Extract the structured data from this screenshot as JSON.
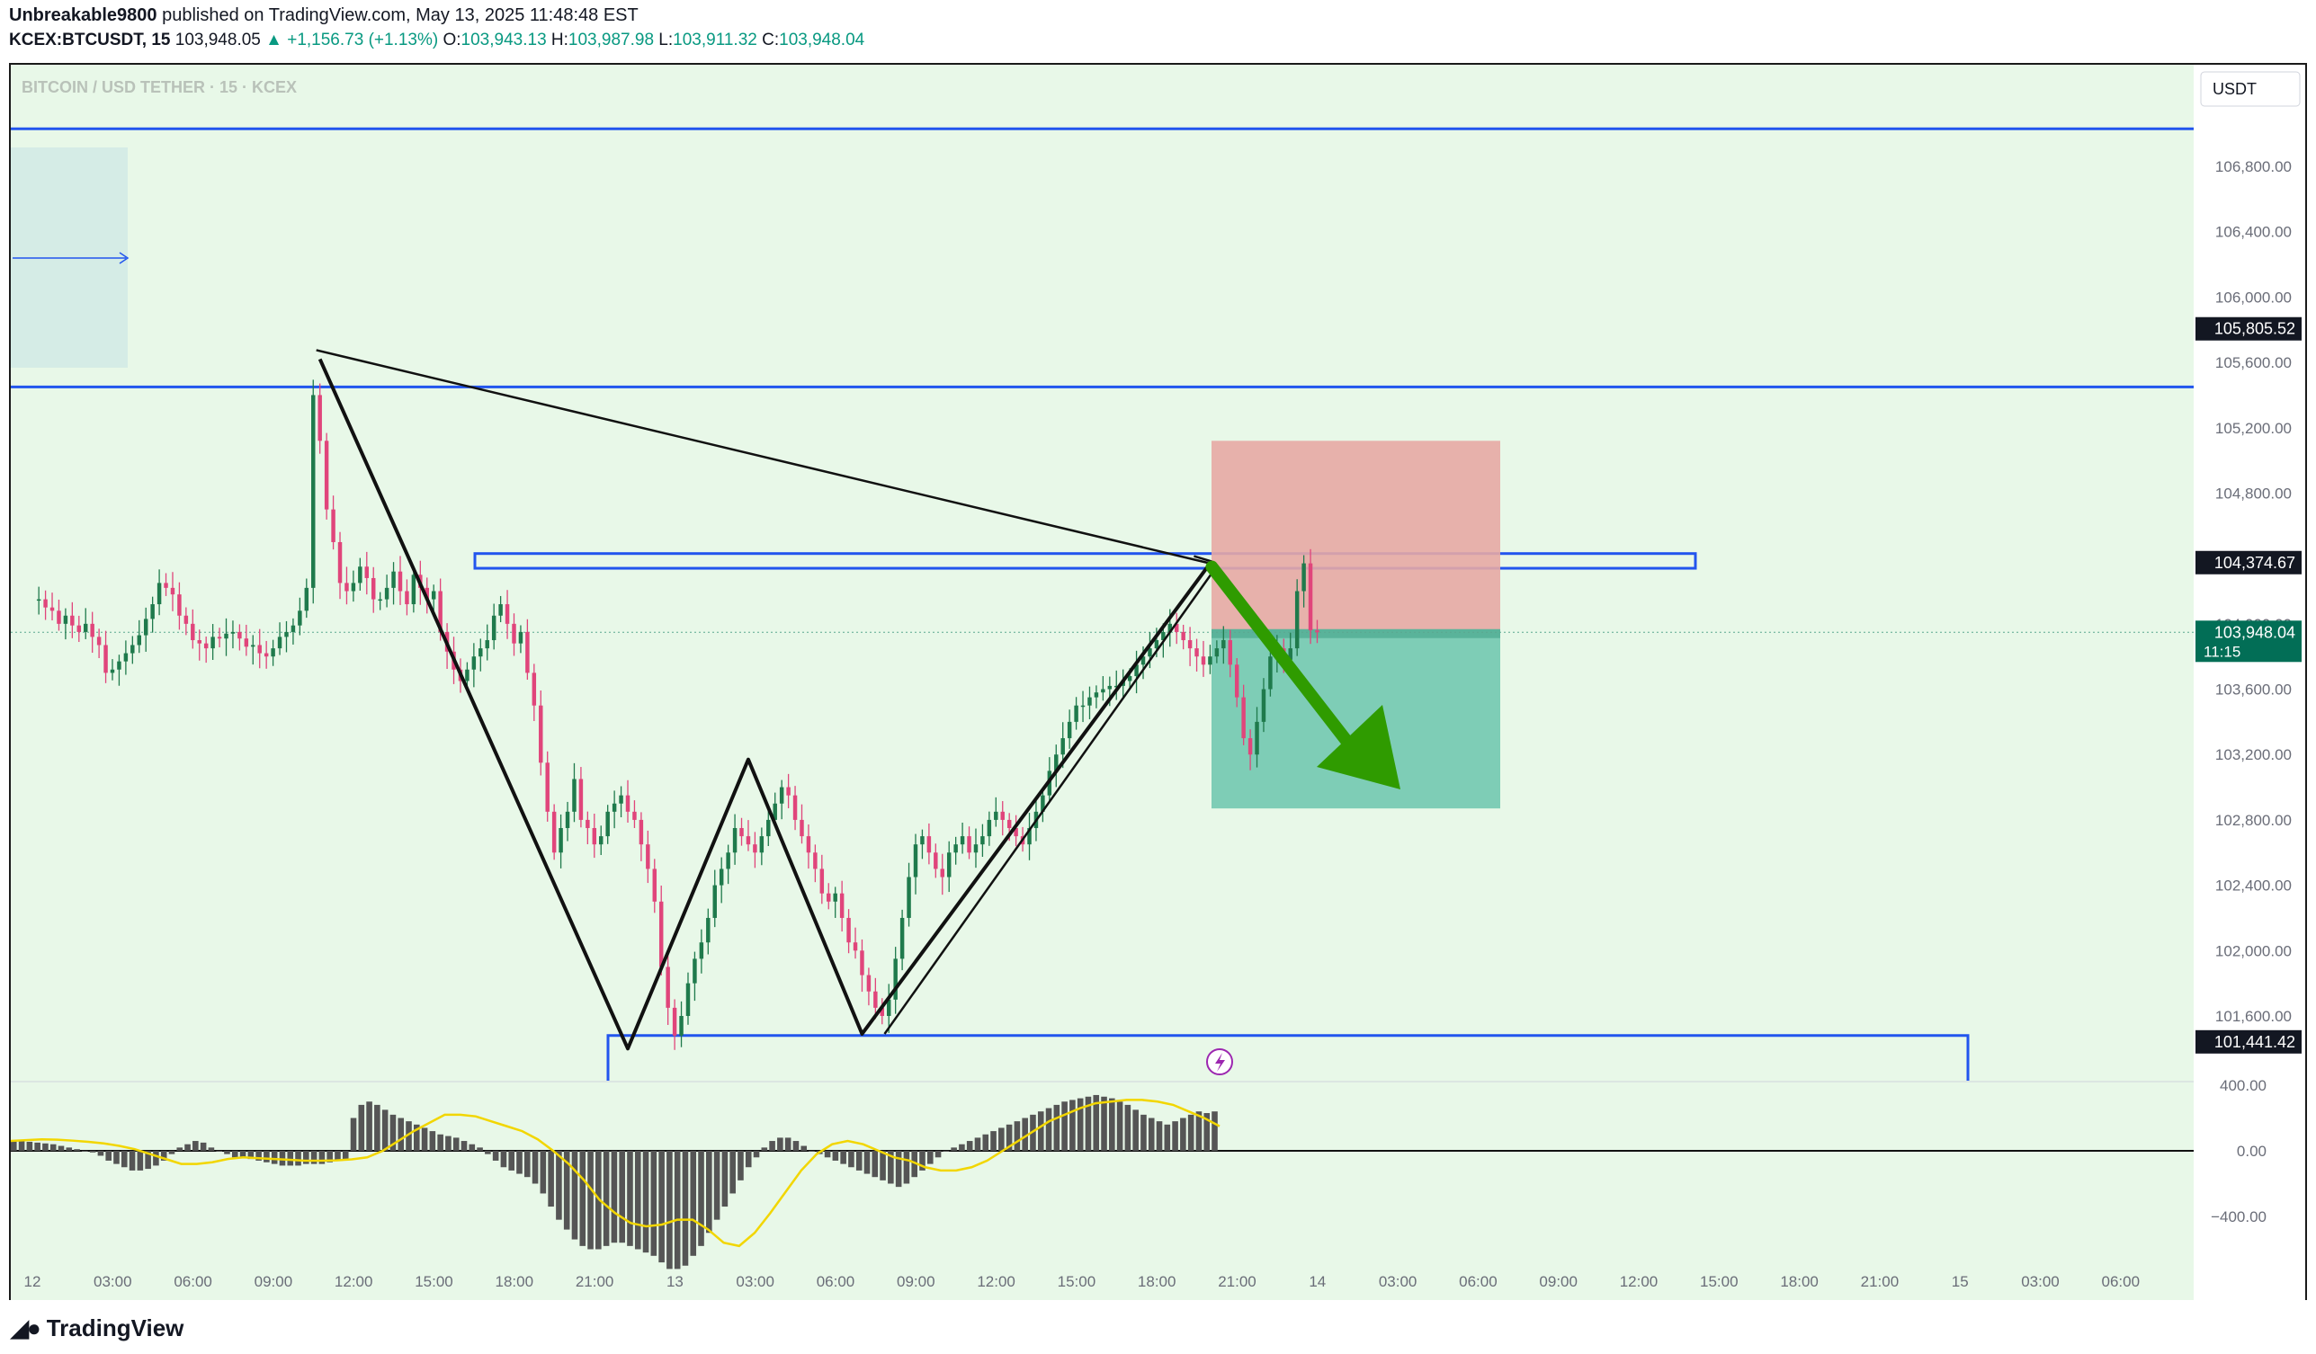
{
  "header": {
    "publisher": "Unbreakable9800",
    "published_text": "published on TradingView.com, May 13, 2025 11:48:48 EST",
    "symbol": "KCEX:BTCUSDT, 15",
    "last": "103,948.05",
    "change": "+1,156.73 (+1.13%)",
    "o_label": "O:",
    "o": "103,943.13",
    "h_label": "H:",
    "h": "103,987.98",
    "l_label": "L:",
    "l": "103,911.32",
    "c_label": "C:",
    "c": "103,948.04"
  },
  "chart": {
    "watermark": "BITCOIN / USD TETHER · 15 · KCEX",
    "currency": "USDT",
    "price_ticks": [
      "106,800.00",
      "106,400.00",
      "106,000.00",
      "105,600.00",
      "105,200.00",
      "104,800.00",
      "104,400.00",
      "104,000.00",
      "103,600.00",
      "103,200.00",
      "102,800.00",
      "102,400.00",
      "102,000.00",
      "101,600.00"
    ],
    "price_badges": [
      {
        "text": "105,805.52",
        "price": 105805.52,
        "bg": "#131722"
      },
      {
        "text": "104,374.67",
        "price": 104374.67,
        "bg": "#131722"
      },
      {
        "text": "103,948.04",
        "sub": "11:15",
        "price": 103948.04,
        "bg": "#026e56"
      },
      {
        "text": "101,441.42",
        "price": 101441.42,
        "bg": "#131722"
      }
    ],
    "macd_ticks": [
      "400.00",
      "0.00",
      "−400.00"
    ],
    "time_ticks": [
      "12",
      "03:00",
      "06:00",
      "09:00",
      "12:00",
      "15:00",
      "18:00",
      "21:00",
      "13",
      "03:00",
      "06:00",
      "09:00",
      "12:00",
      "15:00",
      "18:00",
      "21:00",
      "14",
      "03:00",
      "06:00",
      "09:00",
      "12:00",
      "15:00",
      "18:00",
      "21:00",
      "15",
      "03:00",
      "06:00"
    ],
    "colors": {
      "bg": "#e8f8e8",
      "up": "#1f7a4c",
      "down": "#e0457b",
      "level": "#2255ee",
      "arrow": "#2f9b00",
      "stop": "#e7a9a4",
      "target": "#78cab3"
    }
  },
  "chart_data": {
    "type": "candlestick",
    "symbol": "KCEX:BTCUSDT",
    "interval": "15",
    "ylim": [
      101400,
      107200
    ],
    "levels": [
      {
        "price": 107030,
        "style": "horizontal-line"
      },
      {
        "price": 105450,
        "style": "horizontal-line"
      },
      {
        "price_top": 104430,
        "price_bottom": 104340,
        "style": "zone"
      },
      {
        "price": 101480,
        "style": "zone-top"
      }
    ],
    "trade_setup": {
      "direction": "short",
      "entry": 103940,
      "stop": 105120,
      "target": 102870
    },
    "pattern_points": [
      {
        "time": "10:45 May 12",
        "price": 105620
      },
      {
        "time": "22:15 May 12",
        "price": 101400
      },
      {
        "time": "02:45 May 13",
        "price": 103170
      },
      {
        "time": "07:00 May 13",
        "price": 101490
      },
      {
        "time": "20:00 May 13",
        "price": 104370
      }
    ],
    "close_path": [
      104150,
      104150,
      104100,
      104080,
      104000,
      104050,
      103990,
      103950,
      104000,
      103920,
      103870,
      103700,
      103720,
      103770,
      103820,
      103870,
      103930,
      104030,
      104120,
      104250,
      104220,
      104180,
      104050,
      104000,
      103900,
      103880,
      103850,
      103920,
      103910,
      103940,
      103950,
      103910,
      103860,
      103870,
      103820,
      103800,
      103850,
      103920,
      103950,
      103990,
      104080,
      104220,
      105400,
      105120,
      104700,
      104500,
      104250,
      104200,
      104250,
      104350,
      104280,
      104150,
      104150,
      104220,
      104320,
      104200,
      104120,
      104300,
      104220,
      104150,
      104200,
      103950,
      103830,
      103720,
      103650,
      103720,
      103800,
      103850,
      103900,
      104050,
      104120,
      104000,
      103880,
      103950,
      103700,
      103500,
      103150,
      102850,
      102600,
      102750,
      102850,
      103050,
      102800,
      102750,
      102650,
      102700,
      102850,
      102900,
      102950,
      102850,
      102800,
      102650,
      102500,
      102300,
      101900,
      101650,
      101480,
      101600,
      101800,
      101950,
      102050,
      102200,
      102400,
      102500,
      102600,
      102750,
      102700,
      102650,
      102600,
      102700,
      102800,
      102900,
      103000,
      102950,
      102800,
      102700,
      102600,
      102500,
      102350,
      102300,
      102350,
      102200,
      102050,
      102000,
      101850,
      101750,
      101650,
      101600,
      101700,
      101950,
      102200,
      102450,
      102650,
      102700,
      102600,
      102500,
      102450,
      102600,
      102650,
      102700,
      102600,
      102650,
      102700,
      102800,
      102850,
      102800,
      102750,
      102700,
      102650,
      102750,
      102850,
      102950,
      103100,
      103200,
      103300,
      103400,
      103500,
      103500,
      103550,
      103580,
      103600,
      103620,
      103620,
      103650,
      103680,
      103750,
      103800,
      103850,
      103900,
      103950,
      104000,
      103950,
      103900,
      103850,
      103800,
      103750,
      103800,
      103850,
      103900,
      103750,
      103550,
      103300,
      103200,
      103400,
      103600,
      103800,
      103850,
      103780,
      103850,
      104200,
      104370,
      103960,
      103948
    ],
    "macd_hist": [
      60,
      60,
      55,
      50,
      45,
      40,
      30,
      20,
      10,
      0,
      -10,
      -30,
      -60,
      -80,
      -100,
      -120,
      -120,
      -110,
      -90,
      -60,
      -20,
      20,
      40,
      60,
      50,
      20,
      0,
      -20,
      -40,
      -40,
      -50,
      -60,
      -70,
      -80,
      -90,
      -90,
      -90,
      -80,
      -80,
      -80,
      -70,
      -60,
      -50,
      200,
      280,
      300,
      280,
      250,
      220,
      200,
      180,
      160,
      140,
      120,
      100,
      90,
      80,
      60,
      40,
      20,
      -20,
      -60,
      -100,
      -120,
      -140,
      -160,
      -200,
      -260,
      -340,
      -420,
      -480,
      -540,
      -580,
      -600,
      -600,
      -580,
      -560,
      -560,
      -580,
      -600,
      -620,
      -640,
      -680,
      -720,
      -720,
      -700,
      -640,
      -580,
      -500,
      -420,
      -340,
      -260,
      -180,
      -100,
      -40,
      20,
      60,
      80,
      80,
      60,
      30,
      0,
      -20,
      -40,
      -60,
      -80,
      -100,
      -120,
      -140,
      -160,
      -180,
      -200,
      -220,
      -200,
      -160,
      -120,
      -80,
      -40,
      0,
      20,
      40,
      60,
      80,
      100,
      120,
      140,
      160,
      180,
      200,
      220,
      240,
      260,
      280,
      300,
      310,
      320,
      330,
      340,
      330,
      320,
      300,
      280,
      250,
      220,
      200,
      180,
      160,
      180,
      200,
      220,
      240,
      230,
      240
    ],
    "macd_signal": [
      60,
      65,
      70,
      68,
      62,
      55,
      45,
      30,
      10,
      -20,
      -50,
      -80,
      -80,
      -70,
      -50,
      -40,
      -45,
      -50,
      -55,
      -60,
      -60,
      -58,
      -52,
      -40,
      0,
      60,
      120,
      170,
      220,
      220,
      210,
      180,
      150,
      120,
      70,
      0,
      -80,
      -180,
      -300,
      -380,
      -440,
      -460,
      -450,
      -420,
      -420,
      -480,
      -560,
      -580,
      -500,
      -380,
      -250,
      -120,
      -20,
      40,
      60,
      40,
      0,
      -40,
      -60,
      -100,
      -120,
      -120,
      -100,
      -60,
      0,
      60,
      120,
      180,
      220,
      260,
      290,
      300,
      310,
      310,
      300,
      280,
      240,
      200,
      150
    ],
    "macd_ylim": [
      -620,
      450
    ]
  }
}
